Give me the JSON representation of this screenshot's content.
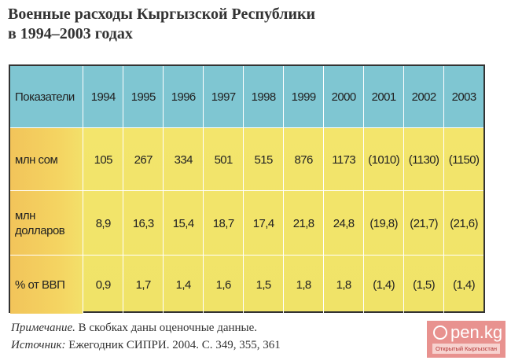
{
  "title_line1": "Военные расходы Кыргызской Республики",
  "title_line2": "в 1994–2003 годах",
  "table": {
    "header_label": "Показатели",
    "years": [
      "1994",
      "1995",
      "1996",
      "1997",
      "1998",
      "1999",
      "2000",
      "2001",
      "2002",
      "2003"
    ],
    "rows": [
      {
        "label": "млн сом",
        "values": [
          "105",
          "267",
          "334",
          "501",
          "515",
          "876",
          "1173",
          "(1010)",
          "(1130)",
          "(1150)"
        ]
      },
      {
        "label": "млн долларов",
        "values": [
          "8,9",
          "16,3",
          "15,4",
          "18,7",
          "17,4",
          "21,8",
          "24,8",
          "(19,8)",
          "(21,7)",
          "(21,6)"
        ]
      },
      {
        "label": "% от ВВП",
        "values": [
          "0,9",
          "1,7",
          "1,4",
          "1,6",
          "1,5",
          "1,8",
          "1,8",
          "(1,4)",
          "(1,5)",
          "(1,4)"
        ]
      }
    ]
  },
  "note": {
    "label": "Примечание.",
    "text": " В скобках даны оценочные данные."
  },
  "source": {
    "label": "Источник:",
    "text": " Ежегодник СИПРИ. 2004. С. 349, 355, 361"
  },
  "watermark": {
    "name": "pen.kg",
    "tagline": "Открытый Кыргызстан"
  },
  "colors": {
    "header": "#7fc6d2",
    "body": "#f3e56c",
    "label_col": "#f2c45a"
  }
}
